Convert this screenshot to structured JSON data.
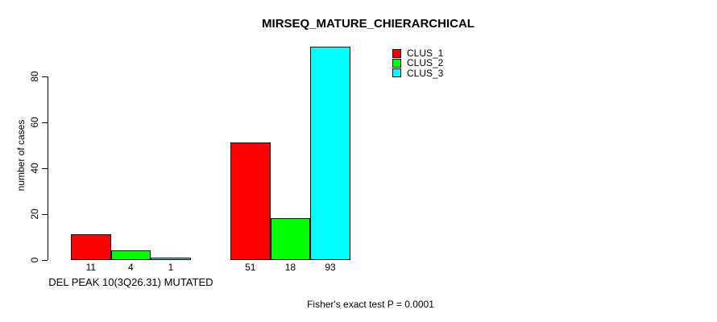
{
  "figure": {
    "background": "#FFFFFF",
    "text_color": "#000000"
  },
  "chart_data": {
    "type": "bar",
    "title": "MIRSEQ_MATURE_CHIERARCHICAL",
    "ylabel": "number of cases",
    "xlabel": "DEL PEAK 10(3Q26.31) MUTATED",
    "annotation": "Fisher's exact test P = 0.0001",
    "ylim": [
      0,
      80
    ],
    "yticks": [
      0,
      20,
      40,
      60,
      80
    ],
    "grid": false,
    "legend_position": "top-right",
    "axis_color": "#000000",
    "bar_border_color": "#000000",
    "categories": [
      "DEL PEAK 10(3Q26.31) MUTATED",
      ""
    ],
    "series": [
      {
        "name": "CLUS_1",
        "color": "#FF0000",
        "values": [
          11,
          51
        ]
      },
      {
        "name": "CLUS_2",
        "color": "#00FF00",
        "values": [
          4,
          18
        ]
      },
      {
        "name": "CLUS_3",
        "color": "#00FFFF",
        "values": [
          1,
          93
        ]
      }
    ],
    "bar_value_labels": [
      [
        "11",
        "4",
        "1"
      ],
      [
        "51",
        "18",
        "93"
      ]
    ]
  }
}
